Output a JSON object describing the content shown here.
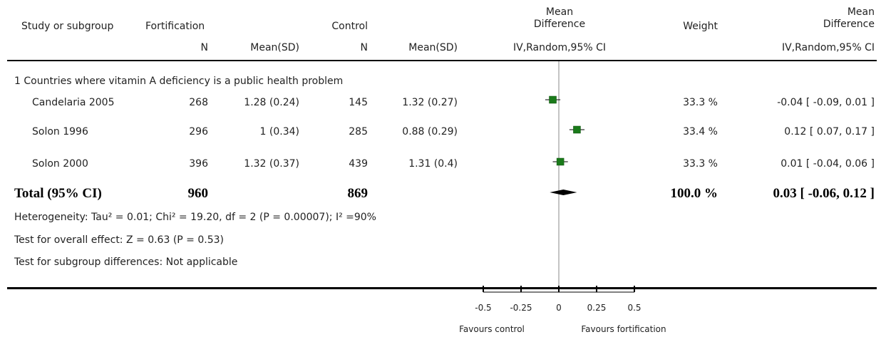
{
  "header": {
    "study": "Study or subgroup",
    "fortification": "Fortification",
    "control": "Control",
    "md_line1": "Mean",
    "md_line2": "Difference",
    "weight": "Weight",
    "md2_line1": "Mean",
    "md2_line2": "Difference",
    "n1": "N",
    "meansd1": "Mean(SD)",
    "n2": "N",
    "meansd2": "Mean(SD)",
    "method": "IV,Random,95% CI",
    "method2": "IV,Random,95% CI"
  },
  "subgroup": {
    "title": "1 Countries where vitamin A deficiency is a public health problem"
  },
  "studies": [
    {
      "name": "Candelaria 2005",
      "n1": "268",
      "msd1": "1.28 (0.24)",
      "n2": "145",
      "msd2": "1.32 (0.27)",
      "weight": "33.3 %",
      "ci": "-0.04 [ -0.09, 0.01 ]"
    },
    {
      "name": "Solon 1996",
      "n1": "296",
      "msd1": "1 (0.34)",
      "n2": "285",
      "msd2": "0.88 (0.29)",
      "weight": "33.4 %",
      "ci": "0.12 [ 0.07, 0.17 ]"
    },
    {
      "name": "Solon 2000",
      "n1": "396",
      "msd1": "1.32 (0.37)",
      "n2": "439",
      "msd2": "1.31 (0.4)",
      "weight": "33.3 %",
      "ci": "0.01 [ -0.04, 0.06 ]"
    }
  ],
  "total": {
    "label": "Total (95% CI)",
    "n1": "960",
    "n2": "869",
    "weight": "100.0 %",
    "ci": "0.03 [ -0.06, 0.12 ]"
  },
  "footer": {
    "heterogeneity": "Heterogeneity: Tau² = 0.01; Chi² = 19.20, df = 2 (P = 0.00007); I² =90%",
    "overall": "Test for overall effect: Z = 0.63 (P = 0.53)",
    "subgroup_diff": "Test for subgroup differences: Not applicable"
  },
  "axis": {
    "favours_left": "Favours control",
    "favours_right": "Favours fortification"
  },
  "colors": {
    "marker": "#1a7a1a",
    "diamond": "#000000"
  },
  "chart_data": {
    "type": "scatter",
    "xlim": [
      -0.5,
      0.5
    ],
    "ticks": [
      -0.5,
      -0.25,
      0,
      0.25,
      0.5
    ],
    "tick_labels": [
      "-0.5",
      "-0.25",
      "0",
      "0.25",
      "0.5"
    ],
    "points": [
      {
        "name": "Candelaria 2005",
        "md": -0.04,
        "lo": -0.09,
        "hi": 0.01
      },
      {
        "name": "Solon 1996",
        "md": 0.12,
        "lo": 0.07,
        "hi": 0.17
      },
      {
        "name": "Solon 2000",
        "md": 0.01,
        "lo": -0.04,
        "hi": 0.06
      }
    ],
    "pooled": {
      "md": 0.03,
      "lo": -0.06,
      "hi": 0.12
    }
  }
}
